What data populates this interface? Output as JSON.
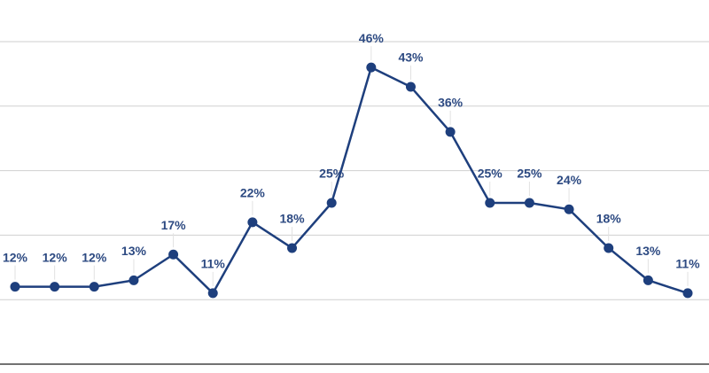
{
  "chart_data": {
    "type": "line",
    "values": [
      12,
      12,
      12,
      13,
      17,
      11,
      22,
      18,
      25,
      46,
      43,
      36,
      25,
      25,
      24,
      18,
      13,
      11
    ],
    "value_labels": [
      "12%",
      "12%",
      "12%",
      "13%",
      "17%",
      "11%",
      "22%",
      "18%",
      "25%",
      "46%",
      "43%",
      "36%",
      "25%",
      "25%",
      "24%",
      "18%",
      "13%",
      "11%"
    ],
    "color": "#1e3f7d",
    "ylim": [
      0,
      50
    ],
    "yticks": [
      0,
      10,
      20,
      30,
      40,
      50
    ],
    "grid": true
  }
}
